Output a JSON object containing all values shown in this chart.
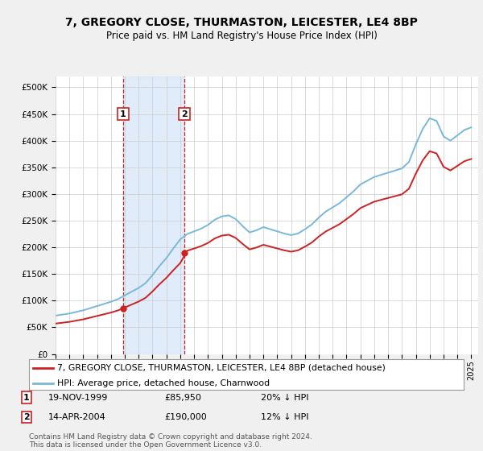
{
  "title": "7, GREGORY CLOSE, THURMASTON, LEICESTER, LE4 8BP",
  "subtitle": "Price paid vs. HM Land Registry's House Price Index (HPI)",
  "footer": "Contains HM Land Registry data © Crown copyright and database right 2024.\nThis data is licensed under the Open Government Licence v3.0.",
  "legend_line1": "7, GREGORY CLOSE, THURMASTON, LEICESTER, LE4 8BP (detached house)",
  "legend_line2": "HPI: Average price, detached house, Charnwood",
  "sale1_label": "1",
  "sale1_date": "19-NOV-1999",
  "sale1_price": "£85,950",
  "sale1_hpi": "20% ↓ HPI",
  "sale2_label": "2",
  "sale2_date": "14-APR-2004",
  "sale2_price": "£190,000",
  "sale2_hpi": "12% ↓ HPI",
  "ylabel_ticks": [
    "£0",
    "£50K",
    "£100K",
    "£150K",
    "£200K",
    "£250K",
    "£300K",
    "£350K",
    "£400K",
    "£450K",
    "£500K"
  ],
  "ylim": [
    0,
    520000
  ],
  "xlim_start": 1995.0,
  "xlim_end": 2025.5,
  "hpi_color": "#7ab8d9",
  "sale_color": "#cc2222",
  "sale1_x": 1999.88,
  "sale1_y": 85950,
  "sale2_x": 2004.29,
  "sale2_y": 190000,
  "vline1_x": 1999.88,
  "vline2_x": 2004.29,
  "plot_bg": "#ffffff",
  "grid_color": "#cccccc",
  "fig_bg": "#f0f0f0"
}
